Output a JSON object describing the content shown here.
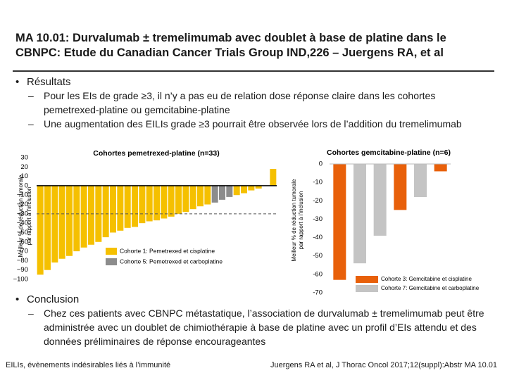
{
  "title": "MA 10.01: Durvalumab ± tremelimumab avec doublet à base de platine dans le CBNPC: Etude du Canadian Cancer Trials Group IND,226 – Juergens RA, et al",
  "results": {
    "heading": "Résultats",
    "items": [
      "Pour les EIs de grade ≥3, il n’y a pas eu de relation dose réponse claire dans les cohortes pemetrexed-platine ou gemcitabine-platine",
      "Une augmentation des EILIs grade ≥3 pourrait être observée lors de l’addition du tremelimumab"
    ]
  },
  "conclusion": {
    "heading": "Conclusion",
    "items": [
      "Chez ces patients avec CBNPC métastatique, l’association de durvalumab ± tremelimumab peut être administrée avec un doublet de chimiothérapie à base de platine avec un profil d’EIs attendu et des données préliminaires de réponse encourageantes"
    ]
  },
  "footnote_left": "EILIs, évènements indésirables liés à l’immunité",
  "footnote_right": "Juergens RA et al, J Thorac Oncol 2017;12(suppl):Abstr MA 10.01",
  "chart_data": [
    {
      "type": "bar",
      "title": "Cohortes pemetrexed-platine (n=33)",
      "y_label": [
        "Meilleur % de réduction tumorale",
        "par rapport à l’inclusion"
      ],
      "values": [
        -95,
        -90,
        -82,
        -78,
        -75,
        -70,
        -66,
        -63,
        -60,
        -55,
        -50,
        -48,
        -45,
        -44,
        -40,
        -38,
        -37,
        -35,
        -33,
        -30,
        -28,
        -25,
        -22,
        -20,
        -18,
        -15,
        -12,
        -10,
        -8,
        -5,
        -3,
        0,
        18
      ],
      "colors": [
        "#f5c000",
        "#f5c000",
        "#f5c000",
        "#f5c000",
        "#f5c000",
        "#f5c000",
        "#f5c000",
        "#f5c000",
        "#f5c000",
        "#f5c000",
        "#f5c000",
        "#f5c000",
        "#f5c000",
        "#f5c000",
        "#f5c000",
        "#f5c000",
        "#f5c000",
        "#f5c000",
        "#f5c000",
        "#f5c000",
        "#f5c000",
        "#f5c000",
        "#f5c000",
        "#f5c000",
        "#8c8c8c",
        "#8c8c8c",
        "#8c8c8c",
        "#f5c000",
        "#f5c000",
        "#f5c000",
        "#f5c000",
        "#f5c000",
        "#f5c000"
      ],
      "ylim": [
        -100,
        30
      ],
      "yticks": [
        30,
        20,
        10,
        0,
        {
          "value": -10,
          "label": "−10"
        },
        {
          "value": -20,
          "label": "−20"
        },
        {
          "value": -30,
          "label": "−30"
        },
        {
          "value": -40,
          "label": "−40"
        },
        {
          "value": -50,
          "label": "−50"
        },
        {
          "value": -60,
          "label": "−60"
        },
        {
          "value": -70,
          "label": "−70"
        },
        {
          "value": -80,
          "label": "−80"
        },
        {
          "value": -90,
          "label": "−90"
        },
        {
          "value": -100,
          "label": "−100"
        }
      ],
      "reference_line": -30,
      "legend": [
        {
          "name": "Cohorte 1: Pemetrexed et cisplatine",
          "color": "#f5c000"
        },
        {
          "name": "Cohorte 5: Pemetrexed et carboplatine",
          "color": "#8c8c8c"
        }
      ]
    },
    {
      "type": "bar",
      "title": "Cohortes gemcitabine-platine (n=6)",
      "y_label": [
        "Meilleur % de réduction tumorale",
        "par rapport à l’inclusion"
      ],
      "values": [
        -63,
        -54,
        -39,
        -25,
        -18,
        -4
      ],
      "colors": [
        "#e8600a",
        "#c4c4c4",
        "#c4c4c4",
        "#e8600a",
        "#c4c4c4",
        "#e8600a"
      ],
      "ylim": [
        -70,
        0
      ],
      "yticks": [
        0,
        -10,
        -20,
        -30,
        -40,
        -50,
        -60,
        -70
      ],
      "legend": [
        {
          "name": "Cohorte 3: Gemcitabine et cisplatine",
          "color": "#e8600a"
        },
        {
          "name": "Cohorte 7: Gemcitabine et carboplatine",
          "color": "#c4c4c4"
        }
      ]
    }
  ]
}
